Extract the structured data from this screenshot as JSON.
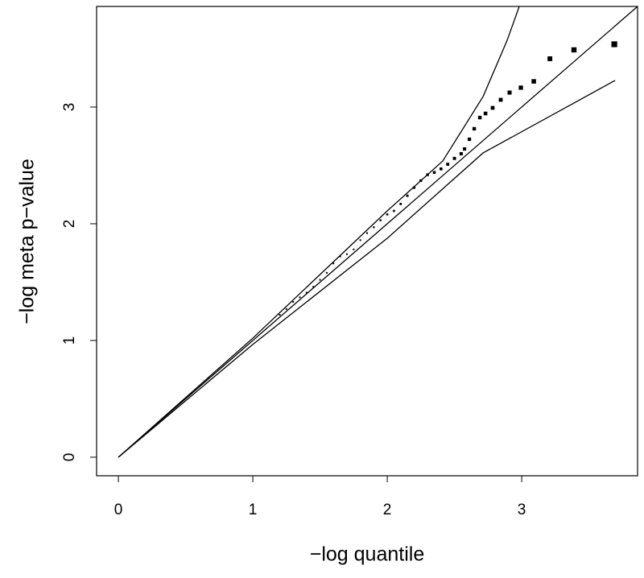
{
  "chart_data": {
    "type": "scatter",
    "x_label": "−log quantile",
    "y_label": "−log meta p−value",
    "xlim": [
      -0.162,
      3.862
    ],
    "ylim": [
      -0.159,
      3.862
    ],
    "xticks": [
      0,
      1,
      2,
      3
    ],
    "yticks": [
      0,
      1,
      2,
      3
    ],
    "color": "#000000",
    "points": {
      "x": [
        1.2,
        1.25,
        1.3,
        1.35,
        1.4,
        1.45,
        1.5,
        1.55,
        1.6,
        1.65,
        1.7,
        1.75,
        1.8,
        1.85,
        1.9,
        1.95,
        2.0,
        2.05,
        2.1,
        2.15,
        2.2,
        2.25,
        2.3,
        2.35,
        2.4,
        2.45,
        2.5,
        2.55,
        2.575,
        2.611,
        2.647,
        2.689,
        2.731,
        2.784,
        2.844,
        2.91,
        2.994,
        3.09,
        3.21,
        3.389,
        3.689
      ],
      "values": [
        1.22,
        1.27,
        1.33,
        1.37,
        1.41,
        1.46,
        1.52,
        1.58,
        1.66,
        1.72,
        1.74,
        1.78,
        1.86,
        1.92,
        1.97,
        2.03,
        2.08,
        2.11,
        2.17,
        2.24,
        2.31,
        2.37,
        2.42,
        2.44,
        2.47,
        2.51,
        2.56,
        2.6,
        2.641,
        2.724,
        2.814,
        2.91,
        2.945,
        2.993,
        3.062,
        3.124,
        3.166,
        3.22,
        3.414,
        3.49,
        3.538
      ]
    },
    "lines": [
      {
        "x": [
          0,
          3.862
        ],
        "values": [
          0,
          3.862
        ]
      },
      {
        "x": [
          0,
          1,
          2,
          2.413,
          2.713,
          2.892,
          2.982
        ],
        "values": [
          0,
          1.02,
          2.11,
          2.538,
          3.09,
          3.572,
          3.862
        ]
      },
      {
        "x": [
          0,
          1,
          2,
          2.713,
          3.695
        ],
        "values": [
          0,
          0.966,
          1.876,
          2.607,
          3.228
        ]
      }
    ]
  }
}
